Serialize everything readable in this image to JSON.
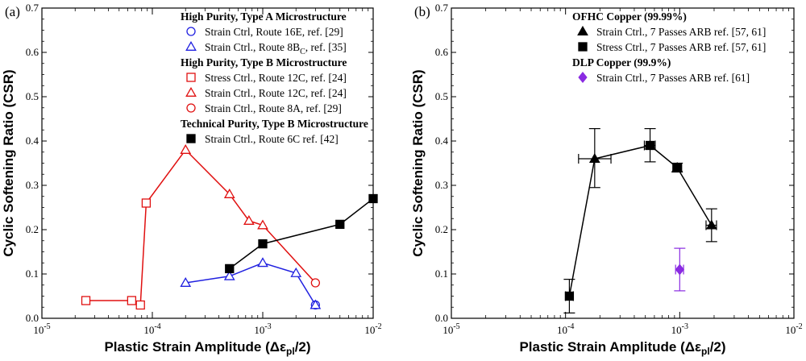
{
  "chart_data": [
    {
      "type": "scatter",
      "panel_label": "(a)",
      "xlabel": "Plastic Strain Amplitude (Δε",
      "xlabel_sub": "pl",
      "xlabel_end": "/2)",
      "ylabel": "Cyclic Softening Ratio (CSR)",
      "xscale": "log",
      "xlim": [
        1e-05,
        0.01
      ],
      "ylim": [
        0.0,
        0.7
      ],
      "x_ticks": [
        {
          "b": "10",
          "e": "-5"
        },
        {
          "b": "10",
          "e": "-4"
        },
        {
          "b": "10",
          "e": "-3"
        },
        {
          "b": "10",
          "e": "-2"
        }
      ],
      "y_ticks": [
        "0.0",
        "0.1",
        "0.2",
        "0.3",
        "0.4",
        "0.5",
        "0.6",
        "0.7"
      ],
      "legend_location": "top-right",
      "legend": [
        {
          "kind": "title",
          "text": "High Purity, Type A Microstructure"
        },
        {
          "kind": "entry",
          "series": 0,
          "text": "Strain Ctrl, Route 16E,  ref. [29]"
        },
        {
          "kind": "entry",
          "series": 1,
          "text": "Strain Ctrl., Route 8B",
          "sub": "C",
          "text_end": ",  ref. [35]"
        },
        {
          "kind": "title",
          "text": "High Purity, Type B Microstructure"
        },
        {
          "kind": "entry",
          "series": 2,
          "text": "Stress Ctrl., Route 12C,  ref. [24]"
        },
        {
          "kind": "entry",
          "series": 3,
          "text": "Strain Ctrl., Route 12C,  ref. [24]"
        },
        {
          "kind": "entry",
          "series": 4,
          "text": "Strain Ctrl., Route 8A,  ref. [29]"
        },
        {
          "kind": "title",
          "text": "Technical Purity, Type B Microstructure"
        },
        {
          "kind": "entry",
          "series": 5,
          "text": "Strain Ctrl., Route 6C  ref. [42]"
        }
      ],
      "series": [
        {
          "name": "High Purity Type A - Strain Ctrl, Route 16E, ref. [29]",
          "marker": "circle",
          "filled": false,
          "color": "#2020e0",
          "connect": false,
          "points": [
            {
              "x": 0.003,
              "y": 0.03
            }
          ]
        },
        {
          "name": "High Purity Type A - Strain Ctrl., Route 8Bc, ref. [35]",
          "marker": "triangle",
          "filled": false,
          "color": "#2020e0",
          "connect": true,
          "points": [
            {
              "x": 0.0002,
              "y": 0.08
            },
            {
              "x": 0.0005,
              "y": 0.095
            },
            {
              "x": 0.001,
              "y": 0.125
            },
            {
              "x": 0.002,
              "y": 0.102
            },
            {
              "x": 0.003,
              "y": 0.03
            }
          ]
        },
        {
          "name": "High Purity Type B - Stress Ctrl., Route 12C, ref. [24]",
          "marker": "square",
          "filled": false,
          "color": "#e01010",
          "connect": false,
          "points": [
            {
              "x": 2.5e-05,
              "y": 0.04
            },
            {
              "x": 6.5e-05,
              "y": 0.04
            },
            {
              "x": 7.8e-05,
              "y": 0.03
            },
            {
              "x": 8.8e-05,
              "y": 0.26
            }
          ]
        },
        {
          "name": "High Purity Type B - Strain Ctrl., Route 12C, ref. [24]",
          "marker": "triangle",
          "filled": false,
          "color": "#e01010",
          "connect": false,
          "points": [
            {
              "x": 0.0002,
              "y": 0.38
            },
            {
              "x": 0.0005,
              "y": 0.28
            },
            {
              "x": 0.00075,
              "y": 0.22
            },
            {
              "x": 0.001,
              "y": 0.21
            }
          ]
        },
        {
          "name": "High Purity Type B - Strain Ctrl., Route 8A, ref. [29]",
          "marker": "circle",
          "filled": false,
          "color": "#e01010",
          "connect": false,
          "points": [
            {
              "x": 0.003,
              "y": 0.08
            }
          ]
        },
        {
          "name": "Technical Purity Type B - Strain Ctrl., Route 6C ref. [42]",
          "marker": "square",
          "filled": true,
          "color": "#000000",
          "connect": true,
          "points": [
            {
              "x": 0.0005,
              "y": 0.112
            },
            {
              "x": 0.001,
              "y": 0.168
            },
            {
              "x": 0.005,
              "y": 0.212
            },
            {
              "x": 0.01,
              "y": 0.27
            }
          ]
        }
      ],
      "lines": [
        {
          "color": "#e01010",
          "points": [
            {
              "x": 2.5e-05,
              "y": 0.04
            },
            {
              "x": 6.5e-05,
              "y": 0.04
            },
            {
              "x": 7.8e-05,
              "y": 0.03
            },
            {
              "x": 8.8e-05,
              "y": 0.26
            },
            {
              "x": 0.0002,
              "y": 0.38
            },
            {
              "x": 0.0005,
              "y": 0.28
            },
            {
              "x": 0.00075,
              "y": 0.22
            },
            {
              "x": 0.001,
              "y": 0.21
            },
            {
              "x": 0.003,
              "y": 0.08
            }
          ]
        }
      ]
    },
    {
      "type": "scatter",
      "panel_label": "(b)",
      "xlabel": "Plastic Strain Amplitude (Δε",
      "xlabel_sub": "pl",
      "xlabel_end": "/2)",
      "ylabel": "Cyclic Softening Ratio (CSR)",
      "xscale": "log",
      "xlim": [
        1e-05,
        0.01
      ],
      "ylim": [
        0.0,
        0.7
      ],
      "x_ticks": [
        {
          "b": "10",
          "e": "-5"
        },
        {
          "b": "10",
          "e": "-4"
        },
        {
          "b": "10",
          "e": "-3"
        },
        {
          "b": "10",
          "e": "-2"
        }
      ],
      "y_ticks": [
        "0.0",
        "0.1",
        "0.2",
        "0.3",
        "0.4",
        "0.5",
        "0.6",
        "0.7"
      ],
      "legend_location": "top-right",
      "legend": [
        {
          "kind": "title",
          "text": "OFHC Copper (99.99%)"
        },
        {
          "kind": "entry",
          "series": 0,
          "text": "Strain Ctrl., 7 Passes ARB ref. [57, 61]"
        },
        {
          "kind": "entry",
          "series": 1,
          "text": "Stress Ctrl., 7 Passes ARB ref. [57, 61]"
        },
        {
          "kind": "title",
          "text": "DLP Copper (99.9%)"
        },
        {
          "kind": "entry",
          "series": 2,
          "text": "Strain Ctrl., 7 Passes ARB ref. [61]"
        }
      ],
      "series": [
        {
          "name": "OFHC Copper - Strain Ctrl., 7 Passes ARB ref. [57, 61]",
          "marker": "triangle",
          "filled": true,
          "color": "#000000",
          "connect": false,
          "points": [
            {
              "x": 0.00018,
              "y": 0.36,
              "yerr": [
                0.295,
                0.428
              ],
              "xerr": [
                0.00013,
                0.00025
              ]
            },
            {
              "x": 0.00055,
              "y": 0.39,
              "yerr": [
                0.353,
                0.428
              ],
              "xerr": [
                0.00049,
                0.00061
              ]
            },
            {
              "x": 0.00095,
              "y": 0.34,
              "yerr": [
                0.33,
                0.35
              ],
              "xerr": [
                0.00087,
                0.00104
              ]
            },
            {
              "x": 0.0019,
              "y": 0.21,
              "yerr": [
                0.173,
                0.247
              ],
              "xerr": [
                0.0017,
                0.0021
              ]
            }
          ]
        },
        {
          "name": "OFHC Copper - Stress Ctrl., 7 Passes ARB ref. [57, 61]",
          "marker": "square",
          "filled": true,
          "color": "#000000",
          "connect": false,
          "points": [
            {
              "x": 0.000108,
              "y": 0.05,
              "yerr": [
                0.012,
                0.088
              ],
              "xerr": [
                0.0001,
                0.000117
              ]
            },
            {
              "x": 0.00055,
              "y": 0.39
            },
            {
              "x": 0.00095,
              "y": 0.34
            }
          ]
        },
        {
          "name": "DLP Copper - Strain Ctrl., 7 Passes ARB ref. [61]",
          "marker": "diamond",
          "filled": true,
          "color": "#8a2be2",
          "connect": false,
          "points": [
            {
              "x": 0.001,
              "y": 0.11,
              "yerr": [
                0.062,
                0.158
              ],
              "xerr": [
                0.00092,
                0.00108
              ]
            }
          ]
        }
      ],
      "lines": [
        {
          "color": "#000000",
          "points": [
            {
              "x": 0.000108,
              "y": 0.05
            },
            {
              "x": 0.00018,
              "y": 0.36
            },
            {
              "x": 0.00055,
              "y": 0.39
            },
            {
              "x": 0.00095,
              "y": 0.34
            },
            {
              "x": 0.0019,
              "y": 0.21
            }
          ]
        }
      ]
    }
  ]
}
